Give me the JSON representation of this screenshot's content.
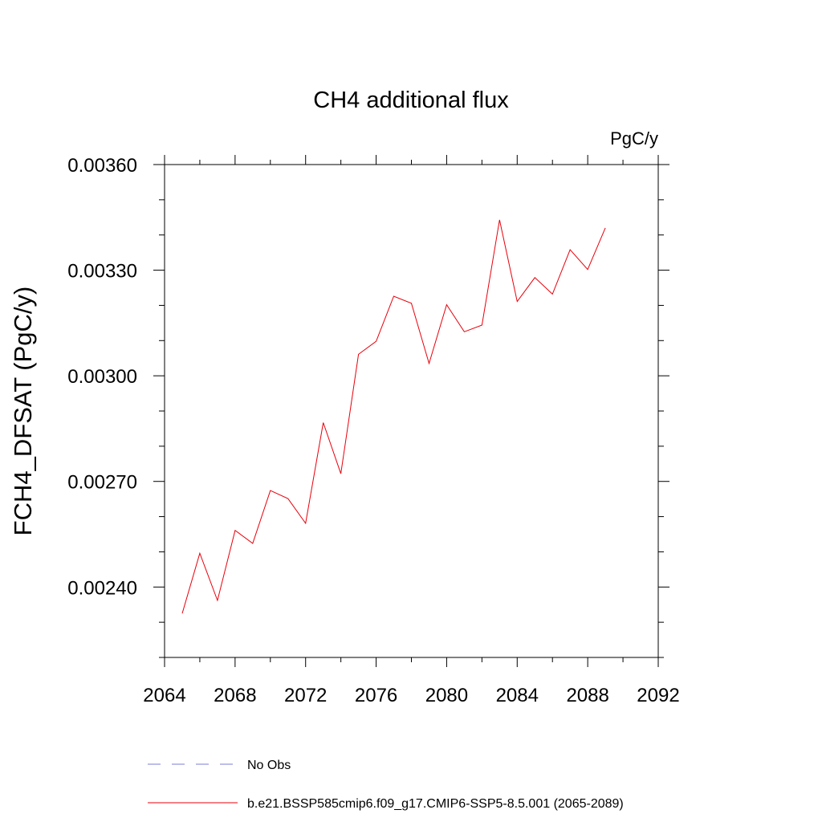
{
  "chart_data": {
    "type": "line",
    "title": "CH4 additional flux",
    "units_label": "PgC/y",
    "ylabel": "FCH4_DFSAT  (PgC/y)",
    "xlabel": "",
    "xlim": [
      2064,
      2092
    ],
    "ylim": [
      0.0022,
      0.0036
    ],
    "x_ticks": [
      2064,
      2068,
      2072,
      2076,
      2080,
      2084,
      2088,
      2092
    ],
    "x_tick_labels": [
      "2064",
      "2068",
      "2072",
      "2076",
      "2080",
      "2084",
      "2088",
      "2092"
    ],
    "y_ticks": [
      0.0024,
      0.0027,
      0.003,
      0.0033,
      0.0036
    ],
    "y_tick_labels": [
      "0.00240",
      "0.00270",
      "0.00300",
      "0.00330",
      "0.00360"
    ],
    "grid": false,
    "legend_position": "bottom",
    "series": [
      {
        "name": "b.e21.BSSP585cmip6.f09_g17.CMIP6-SSP5-8.5.001 (2065-2089)",
        "color": "#e8000b",
        "dash": "solid",
        "x": [
          2065,
          2066,
          2067,
          2068,
          2069,
          2070,
          2071,
          2072,
          2073,
          2074,
          2075,
          2076,
          2077,
          2078,
          2079,
          2080,
          2081,
          2082,
          2083,
          2084,
          2085,
          2086,
          2087,
          2088,
          2089
        ],
        "y": [
          0.002325,
          0.002496,
          0.002362,
          0.002561,
          0.002524,
          0.002674,
          0.002651,
          0.002581,
          0.002867,
          0.002722,
          0.003061,
          0.003098,
          0.003226,
          0.003206,
          0.003035,
          0.003202,
          0.003125,
          0.003144,
          0.003443,
          0.003211,
          0.003279,
          0.003232,
          0.003358,
          0.003302,
          0.00342
        ]
      }
    ],
    "legend": [
      {
        "label": "No Obs",
        "color": "#7d7dd6",
        "dash": "dashed"
      },
      {
        "label": "b.e21.BSSP585cmip6.f09_g17.CMIP6-SSP5-8.5.001 (2065-2089)",
        "color": "#e8000b",
        "dash": "solid"
      }
    ]
  }
}
